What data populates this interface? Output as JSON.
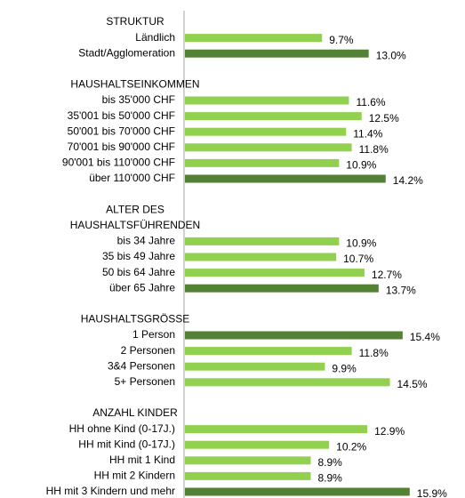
{
  "chart_data": {
    "type": "bar",
    "groups": [
      {
        "title": [
          "STRUKTUR"
        ],
        "categories": [
          "Ländlich",
          "Stadt/Agglomeration"
        ],
        "values": [
          9.7,
          13.0
        ],
        "value_labels": [
          "9.7%",
          "13.0%"
        ],
        "colors": [
          "#92d050",
          "#548235"
        ]
      },
      {
        "title": [
          "HAUSHALTSEINKOMMEN"
        ],
        "categories": [
          "bis 35'000 CHF",
          "35'001 bis 50'000 CHF",
          "50'001 bis 70'000 CHF",
          "70'001 bis 90'000 CHF",
          "90'001 bis 110'000 CHF",
          "über 110'000 CHF"
        ],
        "values": [
          11.6,
          12.5,
          11.4,
          11.8,
          10.9,
          14.2
        ],
        "value_labels": [
          "11.6%",
          "12.5%",
          "11.4%",
          "11.8%",
          "10.9%",
          "14.2%"
        ],
        "colors": [
          "#92d050",
          "#92d050",
          "#92d050",
          "#92d050",
          "#92d050",
          "#548235"
        ]
      },
      {
        "title": [
          "ALTER DES",
          "HAUSHALTSFÜHRENDEN"
        ],
        "categories": [
          "bis 34 Jahre",
          "35 bis 49 Jahre",
          "50 bis 64 Jahre",
          "über 65 Jahre"
        ],
        "values": [
          10.9,
          10.7,
          12.7,
          13.7
        ],
        "value_labels": [
          "10.9%",
          "10.7%",
          "12.7%",
          "13.7%"
        ],
        "colors": [
          "#92d050",
          "#92d050",
          "#92d050",
          "#548235"
        ]
      },
      {
        "title": [
          "HAUSHALTSGRÖSSE"
        ],
        "categories": [
          "1 Person",
          "2 Personen",
          "3&4 Personen",
          "5+ Personen"
        ],
        "values": [
          15.4,
          11.8,
          9.9,
          14.5
        ],
        "value_labels": [
          "15.4%",
          "11.8%",
          "9.9%",
          "14.5%"
        ],
        "colors": [
          "#548235",
          "#92d050",
          "#92d050",
          "#92d050"
        ]
      },
      {
        "title": [
          "ANZAHL KINDER"
        ],
        "categories": [
          "HH ohne Kind (0-17J.)",
          "HH mit Kind (0-17J.)",
          "HH mit 1 Kind",
          "HH mit 2 Kindern",
          "HH mit 3 Kindern und mehr"
        ],
        "values": [
          12.9,
          10.2,
          8.9,
          8.9,
          15.9
        ],
        "value_labels": [
          "12.9%",
          "10.2%",
          "8.9%",
          "8.9%",
          "15.9%"
        ],
        "colors": [
          "#92d050",
          "#92d050",
          "#92d050",
          "#92d050",
          "#548235"
        ]
      }
    ]
  }
}
